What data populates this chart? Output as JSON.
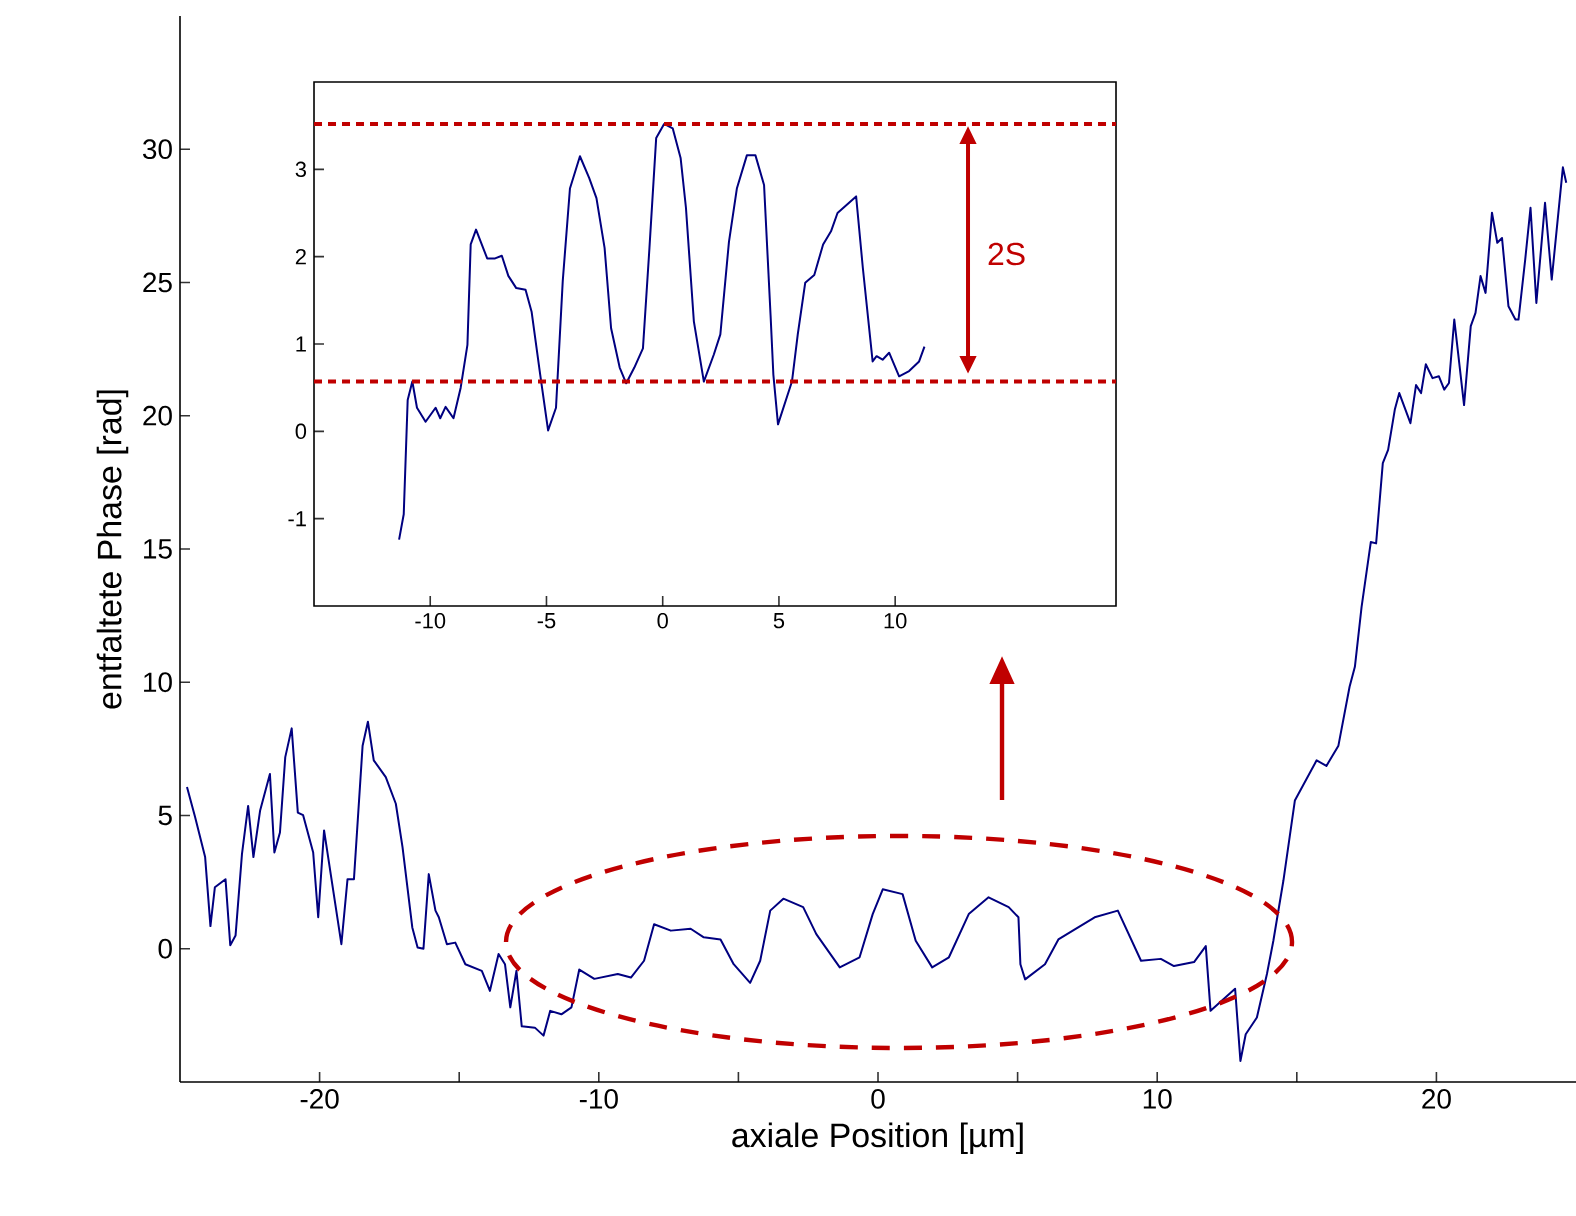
{
  "chart_data": [
    {
      "type": "line",
      "xlabel": "axiale Position [µm]",
      "ylabel": "entfaltete Phase [rad]",
      "xlim": [
        -25,
        25
      ],
      "ylim": [
        -5,
        35
      ],
      "xticks": [
        -20,
        {
          "value": -15,
          "label": null
        },
        -10,
        {
          "value": -5,
          "label": null
        },
        0,
        {
          "value": 5,
          "label": null
        },
        10,
        {
          "value": 15,
          "label": null
        },
        20
      ],
      "yticks": [
        0,
        5,
        10,
        15,
        20,
        25,
        30
      ],
      "series": [
        {
          "color": "#000080",
          "x": [
            -24.75,
            -24.46,
            -24.1,
            -23.91,
            -23.75,
            -23.37,
            -23.2,
            -23.01,
            -22.78,
            -22.56,
            -22.37,
            -22.13,
            -21.78,
            -21.62,
            -21.42,
            -21.23,
            -21.0,
            -20.78,
            -20.59,
            -20.23,
            -20.05,
            -19.84,
            -19.22,
            -19.0,
            -18.77,
            -18.46,
            -18.27,
            -18.06,
            -17.63,
            -17.27,
            -17.03,
            -16.68,
            -16.49,
            -16.28,
            -16.09,
            -15.85,
            -15.73,
            -15.44,
            -15.14,
            -14.78,
            -14.19,
            -13.9,
            -13.59,
            -13.36,
            -13.17,
            -12.95,
            -12.76,
            -12.29,
            -11.98,
            -11.74,
            -11.34,
            -10.98,
            -10.7,
            -10.16,
            -9.32,
            -8.85,
            -8.38,
            -8.02,
            -7.42,
            -6.71,
            -6.24,
            -5.64,
            -5.17,
            -4.58,
            -4.22,
            -3.86,
            -3.39,
            -2.68,
            -2.21,
            -1.37,
            -0.66,
            -0.19,
            0.17,
            0.88,
            1.35,
            1.94,
            2.54,
            3.25,
            3.96,
            4.68,
            5.03,
            5.1,
            5.27,
            5.98,
            6.46,
            7.05,
            7.76,
            8.59,
            9.42,
            10.13,
            10.6,
            11.32,
            11.74,
            11.91,
            12.79,
            12.98,
            13.17,
            13.57,
            13.93,
            14.16,
            14.52,
            14.93,
            15.71,
            16.06,
            16.49,
            16.89,
            17.08,
            17.32,
            17.65,
            17.84,
            18.08,
            18.27,
            18.51,
            18.67,
            19.07,
            19.27,
            19.45,
            19.62,
            19.86,
            20.09,
            20.28,
            20.45,
            20.64,
            20.99,
            21.23,
            21.4,
            21.58,
            21.76,
            21.99,
            22.18,
            22.35,
            22.58,
            22.83,
            22.94,
            23.18,
            23.37,
            23.58,
            23.89,
            24.13,
            24.53,
            24.65
          ],
          "values": [
            6.07,
            4.94,
            3.44,
            0.85,
            2.31,
            2.61,
            0.13,
            0.5,
            3.56,
            5.36,
            3.44,
            5.19,
            6.56,
            3.61,
            4.36,
            7.19,
            8.27,
            5.11,
            5.01,
            3.61,
            1.18,
            4.44,
            0.17,
            2.61,
            2.61,
            7.62,
            8.52,
            7.07,
            6.44,
            5.44,
            3.81,
            0.8,
            0.05,
            0.0,
            2.8,
            1.43,
            1.18,
            0.17,
            0.23,
            -0.58,
            -0.83,
            -1.58,
            -0.2,
            -0.58,
            -2.2,
            -0.83,
            -2.91,
            -2.96,
            -3.26,
            -2.33,
            -2.46,
            -2.2,
            -0.78,
            -1.13,
            -0.95,
            -1.08,
            -0.45,
            0.92,
            0.68,
            0.75,
            0.43,
            0.35,
            -0.58,
            -1.28,
            -0.45,
            1.43,
            1.88,
            1.56,
            0.55,
            -0.7,
            -0.32,
            1.3,
            2.23,
            2.05,
            0.3,
            -0.7,
            -0.32,
            1.3,
            1.93,
            1.56,
            1.18,
            -0.58,
            -1.15,
            -0.58,
            0.35,
            0.73,
            1.18,
            1.43,
            -0.45,
            -0.38,
            -0.65,
            -0.5,
            0.1,
            -2.33,
            -1.5,
            -4.21,
            -3.21,
            -2.58,
            -0.95,
            0.3,
            2.56,
            5.56,
            7.07,
            6.86,
            7.62,
            9.83,
            10.58,
            12.83,
            15.26,
            15.21,
            18.22,
            18.72,
            20.23,
            20.85,
            19.72,
            21.15,
            20.85,
            21.93,
            21.41,
            21.48,
            20.98,
            21.23,
            23.61,
            20.4,
            23.36,
            23.86,
            25.24,
            24.61,
            27.62,
            26.49,
            26.67,
            24.11,
            23.61,
            23.61,
            25.86,
            27.8,
            24.23,
            27.99,
            25.11,
            29.32,
            28.74
          ]
        }
      ]
    },
    {
      "type": "line",
      "xlim": [
        -15,
        19.5
      ],
      "ylim": [
        -2,
        4
      ],
      "xticks": [
        -10,
        -5,
        0,
        5,
        10
      ],
      "yticks": [
        -1,
        0,
        1,
        2,
        3
      ],
      "series": [
        {
          "color": "#000080",
          "x": [
            -11.34,
            -11.14,
            -10.97,
            -10.77,
            -10.57,
            -10.2,
            -9.77,
            -9.57,
            -9.34,
            -9.0,
            -8.69,
            -8.4,
            -8.26,
            -8.03,
            -7.55,
            -7.21,
            -6.92,
            -6.64,
            -6.3,
            -5.9,
            -5.64,
            -5.27,
            -4.93,
            -4.59,
            -4.3,
            -3.99,
            -3.56,
            -3.16,
            -2.85,
            -2.5,
            -2.22,
            -1.85,
            -1.57,
            -1.22,
            -0.85,
            -0.57,
            -0.28,
            0.06,
            0.43,
            0.77,
            1.0,
            1.34,
            1.77,
            2.2,
            2.48,
            2.85,
            3.19,
            3.62,
            3.99,
            4.36,
            4.64,
            4.76,
            4.96,
            5.56,
            5.81,
            6.13,
            6.52,
            6.9,
            7.24,
            7.52,
            8.32,
            8.61,
            9.03,
            9.2,
            9.46,
            9.74,
            10.17,
            10.6,
            11.03,
            11.26
          ],
          "values": [
            -1.24,
            -0.95,
            0.36,
            0.57,
            0.27,
            0.11,
            0.27,
            0.15,
            0.28,
            0.15,
            0.5,
            0.99,
            2.14,
            2.31,
            1.98,
            1.98,
            2.01,
            1.78,
            1.64,
            1.62,
            1.37,
            0.65,
            0.01,
            0.27,
            1.72,
            2.78,
            3.15,
            2.9,
            2.67,
            2.1,
            1.18,
            0.73,
            0.55,
            0.73,
            0.95,
            2.1,
            3.36,
            3.52,
            3.47,
            3.13,
            2.56,
            1.26,
            0.57,
            0.88,
            1.11,
            2.17,
            2.78,
            3.16,
            3.16,
            2.82,
            1.33,
            0.65,
            0.08,
            0.57,
            1.11,
            1.7,
            1.79,
            2.14,
            2.29,
            2.5,
            2.69,
            1.87,
            0.8,
            0.86,
            0.82,
            0.9,
            0.63,
            0.69,
            0.8,
            0.97
          ]
        }
      ],
      "ref_lines": [
        {
          "axis": "y",
          "value": 3.52,
          "color": "#c00000",
          "line_style": "dashed"
        },
        {
          "axis": "y",
          "value": 0.57,
          "color": "#c00000",
          "line_style": "dashed"
        }
      ],
      "annotations": [
        "2S"
      ]
    }
  ]
}
